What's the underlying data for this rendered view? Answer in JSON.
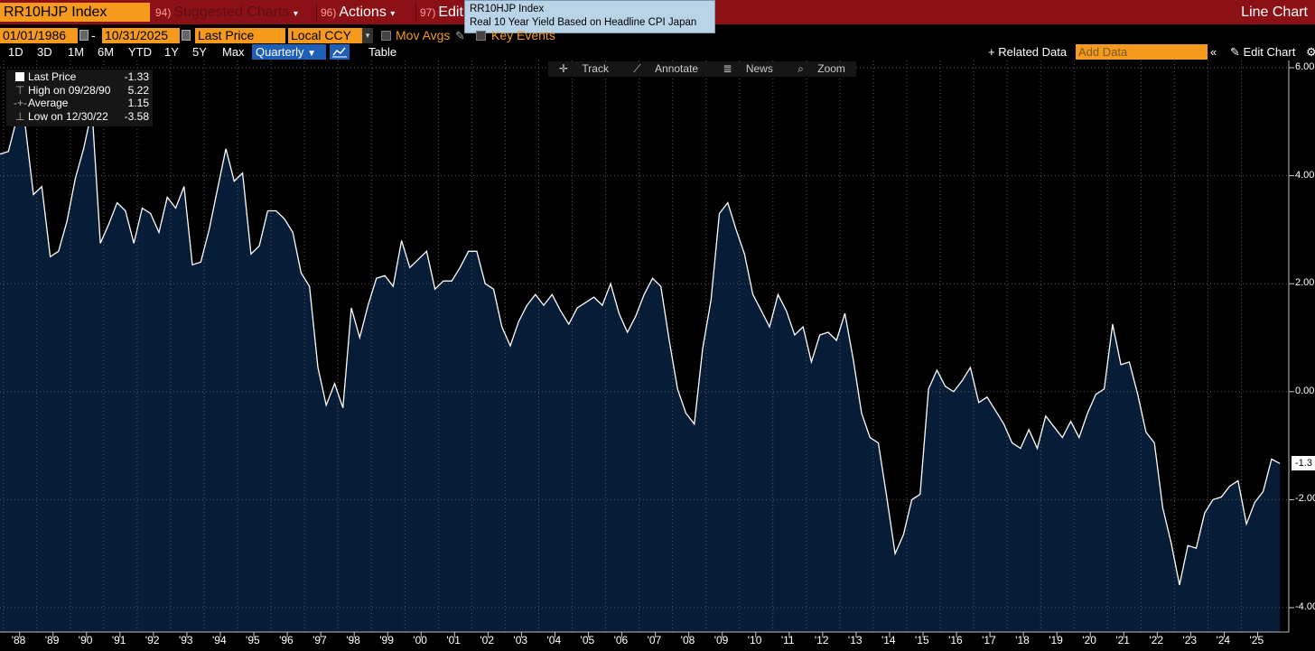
{
  "header": {
    "ticker": "RR10HJP Index",
    "suggested_num": "94)",
    "suggested_label": "Suggested Charts",
    "actions_num": "96)",
    "actions_label": "Actions",
    "edit_num": "97)",
    "edit_label": "Edit",
    "chart_type": "Line Chart",
    "tooltip_title": "RR10HJP Index",
    "tooltip_desc": "Real 10 Year Yield Based on Headline CPI Japan"
  },
  "controls": {
    "start_date": "01/01/1986",
    "end_date": "10/31/2025",
    "date_sep": "-",
    "field": "Last Price",
    "currency": "Local CCY",
    "mov_avgs": "Mov Avgs",
    "key_events": "Key Events",
    "periods": [
      "1D",
      "3D",
      "1M",
      "6M",
      "YTD",
      "1Y",
      "5Y",
      "Max"
    ],
    "frequency": "Quarterly",
    "table_tab": "Table",
    "related_data": "Related Data",
    "add_data_placeholder": "Add Data",
    "edit_chart": "Edit Chart"
  },
  "chart_toolbar": {
    "track": "Track",
    "annotate": "Annotate",
    "news": "News",
    "zoom": "Zoom"
  },
  "legend": {
    "last_label": "Last Price",
    "last_value": "-1.33",
    "high_label": "High on 09/28/90",
    "high_value": "5.22",
    "avg_label": "Average",
    "avg_value": "1.15",
    "low_label": "Low on 12/30/22",
    "low_value": "-3.58"
  },
  "colors": {
    "accent": "#f59a1c",
    "header_bar": "#8b1117",
    "area_fill": "#071c36",
    "line": "#ffffff"
  },
  "chart_data": {
    "type": "area",
    "frequency": "quarterly",
    "ylim": [
      -4.5,
      6.0
    ],
    "yticks": [
      "6.00",
      "4.00",
      "2.00",
      "0.00",
      "-2.00",
      "-4.00"
    ],
    "ytick_values": [
      6,
      4,
      2,
      0,
      -2,
      -4
    ],
    "x_labels": [
      "'88",
      "'89",
      "'90",
      "'91",
      "'92",
      "'93",
      "'94",
      "'95",
      "'96",
      "'97",
      "'98",
      "'99",
      "'00",
      "'01",
      "'02",
      "'03",
      "'04",
      "'05",
      "'06",
      "'07",
      "'08",
      "'09",
      "'10",
      "'11",
      "'12",
      "'13",
      "'14",
      "'15",
      "'16",
      "'17",
      "'18",
      "'19",
      "'20",
      "'21",
      "'22",
      "'23",
      "'24",
      "'25"
    ],
    "x_label_years": [
      1988,
      1989,
      1990,
      1991,
      1992,
      1993,
      1994,
      1995,
      1996,
      1997,
      1998,
      1999,
      2000,
      2001,
      2002,
      2003,
      2004,
      2005,
      2006,
      2007,
      2008,
      2009,
      2010,
      2011,
      2012,
      2013,
      2014,
      2015,
      2016,
      2017,
      2018,
      2019,
      2020,
      2021,
      2022,
      2023,
      2024,
      2025
    ],
    "last_value_tag": "-1.3",
    "x_range": [
      1987.9,
      2025.85
    ],
    "series": [
      {
        "start_year": 1987.9,
        "step_years": 0.25,
        "values": [
          4.4,
          4.45,
          5.05,
          4.95,
          3.65,
          3.8,
          2.5,
          2.6,
          3.15,
          3.95,
          4.5,
          5.22,
          2.75,
          3.1,
          3.5,
          3.35,
          2.75,
          3.4,
          3.3,
          2.95,
          3.6,
          3.4,
          3.8,
          2.35,
          2.4,
          3.0,
          3.75,
          4.5,
          3.9,
          4.05,
          2.55,
          2.7,
          3.35,
          3.35,
          3.2,
          2.95,
          2.2,
          1.95,
          0.45,
          -0.25,
          0.15,
          -0.3,
          1.55,
          1.0,
          1.6,
          2.1,
          2.15,
          1.95,
          2.8,
          2.3,
          2.45,
          2.6,
          1.9,
          2.05,
          2.05,
          2.3,
          2.6,
          2.6,
          2.0,
          1.9,
          1.2,
          0.85,
          1.3,
          1.6,
          1.8,
          1.6,
          1.8,
          1.5,
          1.25,
          1.55,
          1.65,
          1.75,
          1.6,
          2.0,
          1.45,
          1.1,
          1.4,
          1.8,
          2.1,
          1.95,
          0.95,
          0.05,
          -0.4,
          -0.6,
          0.8,
          1.7,
          3.3,
          3.5,
          3.0,
          2.55,
          1.8,
          1.5,
          1.2,
          1.8,
          1.5,
          1.05,
          1.2,
          0.55,
          1.05,
          1.1,
          0.95,
          1.45,
          0.6,
          -0.4,
          -0.85,
          -0.95,
          -1.95,
          -3.0,
          -2.65,
          -2.0,
          -1.9,
          0.05,
          0.4,
          0.1,
          0.0,
          0.2,
          0.45,
          -0.2,
          -0.1,
          -0.35,
          -0.6,
          -0.95,
          -1.05,
          -0.7,
          -1.05,
          -0.45,
          -0.65,
          -0.85,
          -0.55,
          -0.85,
          -0.4,
          -0.05,
          0.05,
          1.25,
          0.5,
          0.55,
          -0.05,
          -0.75,
          -0.95,
          -2.15,
          -2.8,
          -3.58,
          -2.85,
          -2.9,
          -2.25,
          -2.0,
          -1.95,
          -1.75,
          -1.65,
          -2.45,
          -2.05,
          -1.85,
          -1.25,
          -1.33
        ]
      }
    ]
  }
}
